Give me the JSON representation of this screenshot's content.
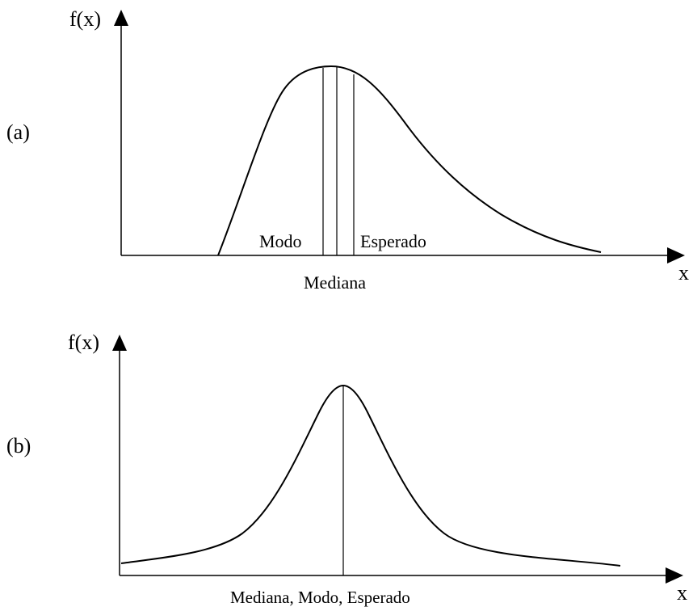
{
  "panel_a": {
    "label": "(a)",
    "y_axis_label": "f(x)",
    "x_axis_label": "x",
    "marker_labels": {
      "modo": "Modo",
      "esperado": "Esperado",
      "mediana": "Mediana"
    }
  },
  "panel_b": {
    "label": "(b)",
    "y_axis_label": "f(x)",
    "x_axis_label": "x",
    "marker_label": "Mediana, Modo, Esperado"
  },
  "colors": {
    "line": "#000000",
    "background": "#ffffff"
  }
}
